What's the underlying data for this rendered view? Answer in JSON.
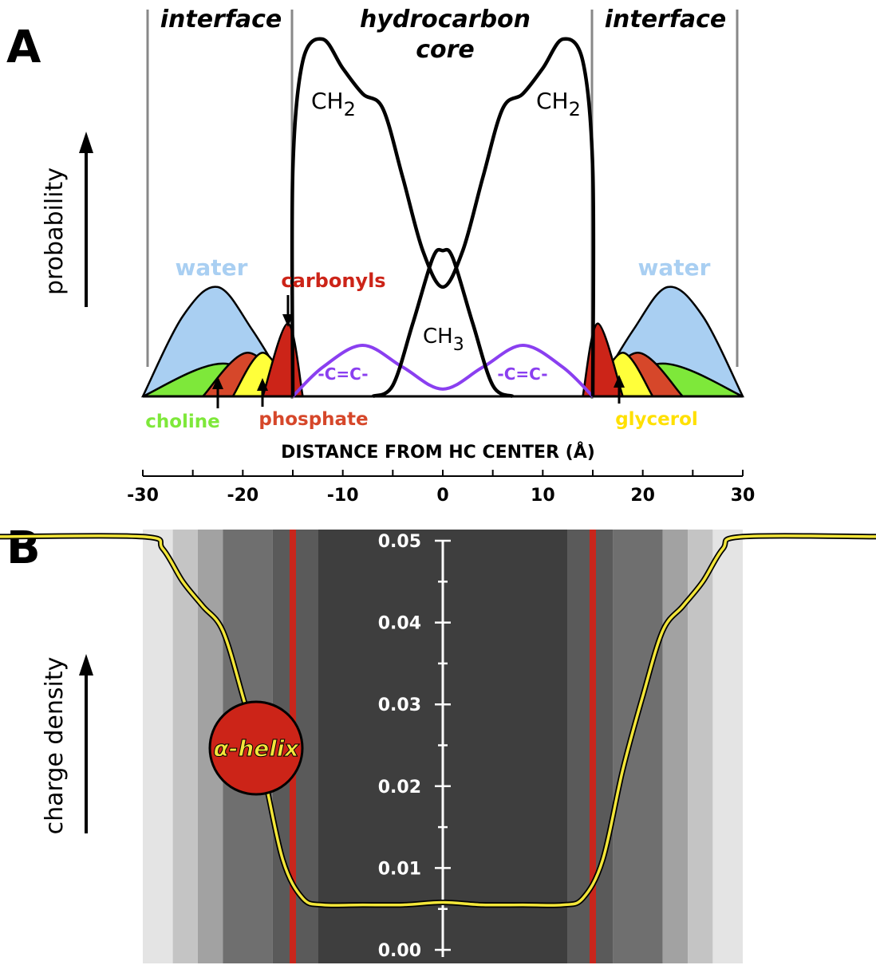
{
  "panel_a": {
    "letter": "A",
    "region_labels": [
      "interface",
      "hydrocarbon",
      "core",
      "interface"
    ],
    "y_label": "probability",
    "curve_labels": {
      "ch2": [
        "CH",
        "2"
      ],
      "ch3": [
        "CH",
        "3"
      ],
      "water": "water",
      "carbonyls": "carbonyls",
      "choline": "choline",
      "phosphate": "phosphate",
      "glycerol": "glycerol",
      "double_bond": "-C=C-"
    }
  },
  "axis": {
    "label": "DISTANCE FROM HC CENTER (Å)",
    "ticks": [
      -30,
      -20,
      -10,
      0,
      10,
      20,
      30
    ]
  },
  "panel_b": {
    "letter": "B",
    "y_label": "charge density",
    "y_ticks": [
      "0.00",
      "0.01",
      "0.02",
      "0.03",
      "0.04",
      "0.05"
    ],
    "helix_label": "α-helix"
  },
  "colors": {
    "water": "#a9cff2",
    "choline": "#7ee83a",
    "phosphate": "#d6472a",
    "glycerol": "#ffff3a",
    "carbonyls": "#cc2418",
    "double_bond": "#8a3ff0",
    "charge_curve": "#f3e63a",
    "helix": "#cc2418"
  },
  "chart_data": [
    {
      "type": "area",
      "title": "",
      "xlabel": "DISTANCE FROM HC CENTER (Å)",
      "ylabel": "probability",
      "xlim": [
        -30,
        30
      ],
      "y_ticks_shown": false,
      "grid": false,
      "region_boundaries": [
        -30,
        -15,
        15,
        30
      ],
      "series": [
        {
          "name": "CH2",
          "x": [
            -15,
            -14,
            -12,
            -10,
            -8,
            -6,
            -4,
            -2,
            0,
            2,
            4,
            6,
            8,
            10,
            12,
            14,
            15
          ],
          "y": [
            0.62,
            0.92,
            0.98,
            0.9,
            0.83,
            0.79,
            0.6,
            0.4,
            0.3,
            0.4,
            0.6,
            0.79,
            0.83,
            0.9,
            0.98,
            0.92,
            0.62
          ]
        },
        {
          "name": "CH3",
          "x": [
            -7,
            -5,
            -3,
            -1,
            0,
            1,
            3,
            5,
            7
          ],
          "y": [
            0.0,
            0.03,
            0.2,
            0.38,
            0.4,
            0.38,
            0.2,
            0.03,
            0.0
          ]
        },
        {
          "name": "-C=C-",
          "x": [
            -15,
            -12,
            -8,
            -4,
            0,
            4,
            8,
            12,
            15
          ],
          "y": [
            0.0,
            0.08,
            0.14,
            0.08,
            0.02,
            0.08,
            0.14,
            0.08,
            0.0
          ]
        },
        {
          "name": "water",
          "x": [
            -30,
            -26,
            -22.5,
            -19,
            -15,
            15,
            19,
            22.5,
            26,
            30
          ],
          "y": [
            0.0,
            0.22,
            0.3,
            0.18,
            0.0,
            0.0,
            0.18,
            0.3,
            0.22,
            0.0
          ]
        },
        {
          "name": "carbonyls",
          "x": [
            -18,
            -15.5,
            -14,
            14,
            15.5,
            18
          ],
          "y": [
            0.0,
            0.2,
            0.0,
            0.0,
            0.2,
            0.0
          ]
        },
        {
          "name": "choline",
          "x": [
            -30,
            -22,
            -15,
            15,
            22,
            30
          ],
          "y": [
            0.0,
            0.09,
            0.0,
            0.0,
            0.09,
            0.0
          ]
        },
        {
          "name": "phosphate",
          "x": [
            -24,
            -19.5,
            -15,
            15,
            19.5,
            24
          ],
          "y": [
            0.0,
            0.12,
            0.0,
            0.0,
            0.12,
            0.0
          ]
        },
        {
          "name": "glycerol",
          "x": [
            -21,
            -18,
            -15,
            15,
            18,
            21
          ],
          "y": [
            0.0,
            0.12,
            0.0,
            0.0,
            0.12,
            0.0
          ]
        }
      ]
    },
    {
      "type": "line",
      "title": "",
      "xlabel": "DISTANCE FROM HC CENTER (Å)",
      "ylabel": "charge density",
      "ylim": [
        0,
        0.05
      ],
      "y_ticks": [
        0.0,
        0.01,
        0.02,
        0.03,
        0.04,
        0.05
      ],
      "series": [
        {
          "name": "",
          "x": [
            -30,
            -28,
            -26,
            -24,
            -22,
            -20,
            -18,
            -16,
            -14,
            -12,
            -8,
            -4,
            0,
            4,
            8,
            12,
            14,
            16,
            18,
            20,
            22,
            24,
            26,
            28,
            30
          ],
          "y": [
            0.0505,
            0.049,
            0.045,
            0.042,
            0.039,
            0.031,
            0.022,
            0.011,
            0.0063,
            0.0055,
            0.0055,
            0.0055,
            0.0058,
            0.0055,
            0.0055,
            0.0055,
            0.0063,
            0.011,
            0.022,
            0.031,
            0.039,
            0.042,
            0.045,
            0.049,
            0.0505
          ]
        }
      ],
      "annotations": [
        {
          "text": "α-helix",
          "x": -18,
          "y": 0.025
        }
      ]
    }
  ]
}
